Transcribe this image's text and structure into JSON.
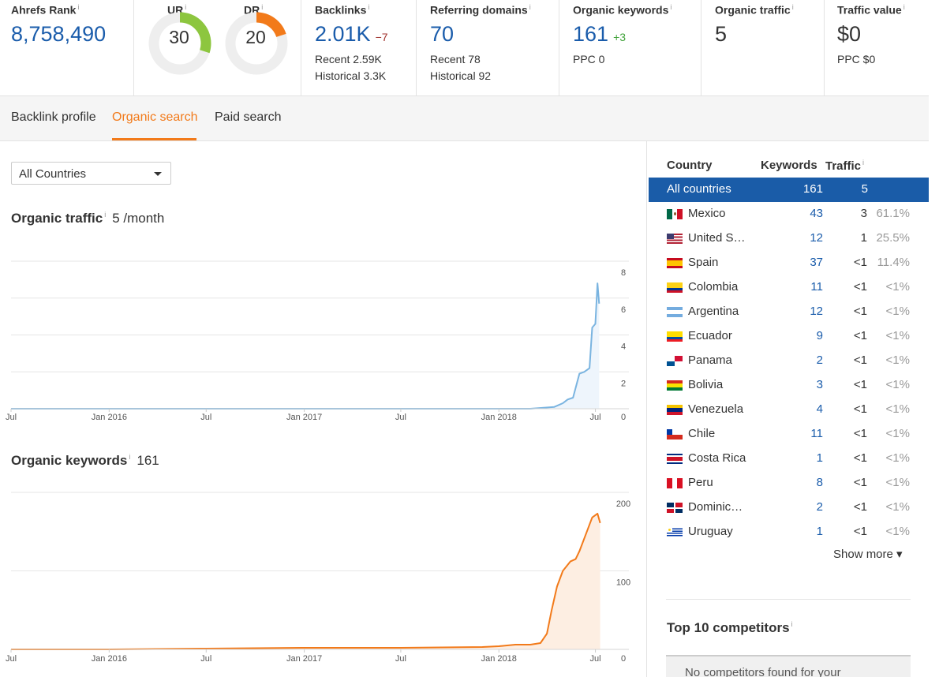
{
  "metrics": {
    "ahrefs_rank": {
      "title": "Ahrefs Rank",
      "info": "i",
      "value": "8,758,490"
    },
    "ur": {
      "title": "UR",
      "info": "i",
      "value": "30",
      "score": 30,
      "color": "#8dc63f"
    },
    "dr": {
      "title": "DR",
      "info": "i",
      "value": "20",
      "score": 20,
      "color": "#f27a1a"
    },
    "backlinks": {
      "title": "Backlinks",
      "info": "i",
      "value": "2.01K",
      "delta": "−7",
      "recent": "Recent 2.59K",
      "historical": "Historical 3.3K"
    },
    "referring_domains": {
      "title": "Referring domains",
      "info": "i",
      "value": "70",
      "recent": "Recent 78",
      "historical": "Historical 92"
    },
    "organic_keywords": {
      "title": "Organic keywords",
      "info": "i",
      "value": "161",
      "delta": "+3",
      "ppc": "PPC 0"
    },
    "organic_traffic": {
      "title": "Organic traffic",
      "info": "i",
      "value": "5"
    },
    "traffic_value": {
      "title": "Traffic value",
      "info": "i",
      "value": "$0",
      "ppc": "PPC $0"
    }
  },
  "tabs": [
    {
      "label": "Backlink profile",
      "active": false
    },
    {
      "label": "Organic search",
      "active": true
    },
    {
      "label": "Paid search",
      "active": false
    }
  ],
  "filter": {
    "selected": "All Countries"
  },
  "organic_traffic_chart": {
    "title": "Organic traffic",
    "info": "i",
    "value": "5 /month"
  },
  "organic_keywords_chart": {
    "title": "Organic keywords",
    "info": "i",
    "value": "161"
  },
  "chart_data": [
    {
      "type": "area",
      "title": "Organic traffic",
      "x_tick_labels": [
        "Jul",
        "Jan 2016",
        "Jul",
        "Jan 2017",
        "Jul",
        "Jan 2018",
        "Jul"
      ],
      "y_ticks": [
        0,
        2,
        4,
        6,
        8
      ],
      "ylim": [
        0,
        8
      ],
      "color": "#7ab4e0",
      "fill": "#eef5fc",
      "grid": true,
      "series": [
        {
          "x": [
            "2015-07",
            "2016-01",
            "2016-07",
            "2017-01",
            "2017-07",
            "2018-01",
            "2018-03",
            "2018-04-15",
            "2018-05-01",
            "2018-05-10",
            "2018-05-20",
            "2018-06-01",
            "2018-06-10",
            "2018-06-20",
            "2018-06-25",
            "2018-07-01",
            "2018-07-05",
            "2018-07-08"
          ],
          "values": [
            0,
            0,
            0,
            0,
            0,
            0,
            0,
            0.1,
            0.3,
            0.5,
            0.6,
            1.9,
            2.0,
            2.2,
            4.4,
            4.6,
            6.8,
            5.7
          ]
        }
      ]
    },
    {
      "type": "area",
      "title": "Organic keywords",
      "x_tick_labels": [
        "Jul",
        "Jan 2016",
        "Jul",
        "Jan 2017",
        "Jul",
        "Jan 2018",
        "Jul"
      ],
      "y_ticks": [
        0,
        100,
        200
      ],
      "ylim": [
        0,
        200
      ],
      "color": "#f27a1a",
      "fill": "#fdeee2",
      "grid": true,
      "series": [
        {
          "x": [
            "2015-07",
            "2016-01",
            "2016-07",
            "2017-01",
            "2017-07",
            "2017-12",
            "2018-01",
            "2018-02",
            "2018-03",
            "2018-03-20",
            "2018-04-01",
            "2018-04-10",
            "2018-04-20",
            "2018-05-01",
            "2018-05-15",
            "2018-05-25",
            "2018-06-01",
            "2018-06-15",
            "2018-06-25",
            "2018-07-05",
            "2018-07-10"
          ],
          "values": [
            0,
            0,
            1,
            2,
            2,
            3,
            4,
            6,
            6,
            8,
            20,
            50,
            80,
            100,
            112,
            115,
            125,
            150,
            168,
            173,
            161
          ]
        }
      ]
    }
  ],
  "countries": {
    "headers": {
      "country": "Country",
      "keywords": "Keywords",
      "traffic": "Traffic",
      "info": "i"
    },
    "rows": [
      {
        "name": "All countries",
        "keywords": "161",
        "traffic": "5",
        "pct": "",
        "flag": ""
      },
      {
        "name": "Mexico",
        "keywords": "43",
        "traffic": "3",
        "pct": "61.1%",
        "flag": "mx"
      },
      {
        "name": "United S…",
        "keywords": "12",
        "traffic": "1",
        "pct": "25.5%",
        "flag": "us"
      },
      {
        "name": "Spain",
        "keywords": "37",
        "traffic": "<1",
        "pct": "11.4%",
        "flag": "es"
      },
      {
        "name": "Colombia",
        "keywords": "11",
        "traffic": "<1",
        "pct": "<1%",
        "flag": "co"
      },
      {
        "name": "Argentina",
        "keywords": "12",
        "traffic": "<1",
        "pct": "<1%",
        "flag": "ar"
      },
      {
        "name": "Ecuador",
        "keywords": "9",
        "traffic": "<1",
        "pct": "<1%",
        "flag": "ec"
      },
      {
        "name": "Panama",
        "keywords": "2",
        "traffic": "<1",
        "pct": "<1%",
        "flag": "pa"
      },
      {
        "name": "Bolivia",
        "keywords": "3",
        "traffic": "<1",
        "pct": "<1%",
        "flag": "bo"
      },
      {
        "name": "Venezuela",
        "keywords": "4",
        "traffic": "<1",
        "pct": "<1%",
        "flag": "ve"
      },
      {
        "name": "Chile",
        "keywords": "11",
        "traffic": "<1",
        "pct": "<1%",
        "flag": "cl"
      },
      {
        "name": "Costa Rica",
        "keywords": "1",
        "traffic": "<1",
        "pct": "<1%",
        "flag": "cr"
      },
      {
        "name": "Peru",
        "keywords": "8",
        "traffic": "<1",
        "pct": "<1%",
        "flag": "pe"
      },
      {
        "name": "Dominic…",
        "keywords": "2",
        "traffic": "<1",
        "pct": "<1%",
        "flag": "do"
      },
      {
        "name": "Uruguay",
        "keywords": "1",
        "traffic": "<1",
        "pct": "<1%",
        "flag": "uy"
      }
    ],
    "show_more": "Show more ▾"
  },
  "competitors": {
    "title": "Top 10 competitors",
    "info": "i",
    "empty_text": "No competitors found for your"
  },
  "colors": {
    "brand_blue": "#1a5cab",
    "accent_orange": "#f27a1a",
    "positive": "#41a33a",
    "negative": "#a0322d",
    "selected_row": "#1a5ca8"
  }
}
